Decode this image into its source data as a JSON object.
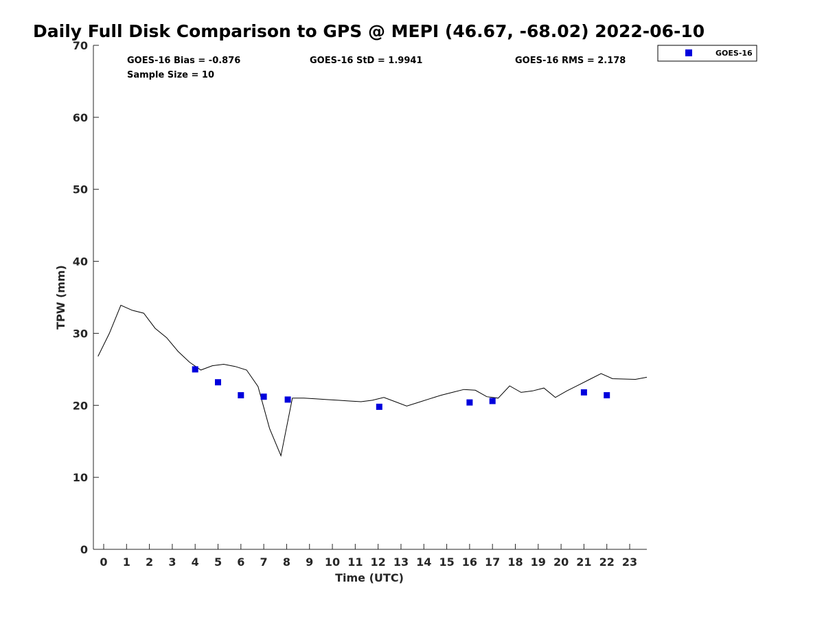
{
  "chart_data": {
    "type": "scatter",
    "title": "Daily Full Disk Comparison to GPS @ MEPI (46.67, -68.02) 2022-06-10",
    "xlabel": "Time (UTC)",
    "ylabel": "TPW (mm)",
    "xlim": [
      -0.45,
      23.75
    ],
    "ylim": [
      0,
      70
    ],
    "x_ticks": [
      0,
      1,
      2,
      3,
      4,
      5,
      6,
      7,
      8,
      9,
      10,
      11,
      12,
      13,
      14,
      15,
      16,
      17,
      18,
      19,
      20,
      21,
      22,
      23
    ],
    "y_ticks": [
      0,
      10,
      20,
      30,
      40,
      50,
      60,
      70
    ],
    "grid": false,
    "legend_position": "top-right",
    "stats": {
      "bias": "GOES-16 Bias = -0.876",
      "std": "GOES-16 StD = 1.9941",
      "rms": "GOES-16 RMS = 2.178",
      "sample_size": "Sample Size = 10"
    },
    "series": [
      {
        "name": "GOES-16",
        "kind": "markers",
        "color": "#0000dd",
        "x": [
          4.0,
          5.0,
          6.0,
          7.0,
          8.05,
          12.05,
          16.0,
          17.0,
          21.0,
          22.0
        ],
        "y": [
          25.0,
          23.2,
          21.4,
          21.2,
          20.8,
          19.8,
          20.4,
          20.6,
          21.8,
          21.4
        ]
      },
      {
        "kind": "line",
        "color": "#000000",
        "x": [
          -0.25,
          0.25,
          0.75,
          1.25,
          1.75,
          2.25,
          2.75,
          3.25,
          3.75,
          4.25,
          4.75,
          5.25,
          5.75,
          6.25,
          6.75,
          7.25,
          7.75,
          8.25,
          8.75,
          9.25,
          9.75,
          10.25,
          10.75,
          11.25,
          11.75,
          12.25,
          12.75,
          13.25,
          13.75,
          14.25,
          14.75,
          15.25,
          15.75,
          16.25,
          16.75,
          17.25,
          17.75,
          18.25,
          18.75,
          19.25,
          19.75,
          20.25,
          20.75,
          21.25,
          21.75,
          22.25,
          22.75,
          23.25,
          23.75
        ],
        "y": [
          26.8,
          30.0,
          33.9,
          33.2,
          32.8,
          30.7,
          29.4,
          27.5,
          26.0,
          24.9,
          25.5,
          25.7,
          25.4,
          24.9,
          22.6,
          16.8,
          13.0,
          21.0,
          21.0,
          20.9,
          20.8,
          20.7,
          20.6,
          20.5,
          20.7,
          21.1,
          20.5,
          19.9,
          20.4,
          20.9,
          21.4,
          21.8,
          22.2,
          22.1,
          21.2,
          21.0,
          22.7,
          21.8,
          22.0,
          22.4,
          21.1,
          22.0,
          22.8,
          23.6,
          24.4,
          23.7,
          23.65,
          23.6,
          23.9
        ]
      }
    ]
  }
}
